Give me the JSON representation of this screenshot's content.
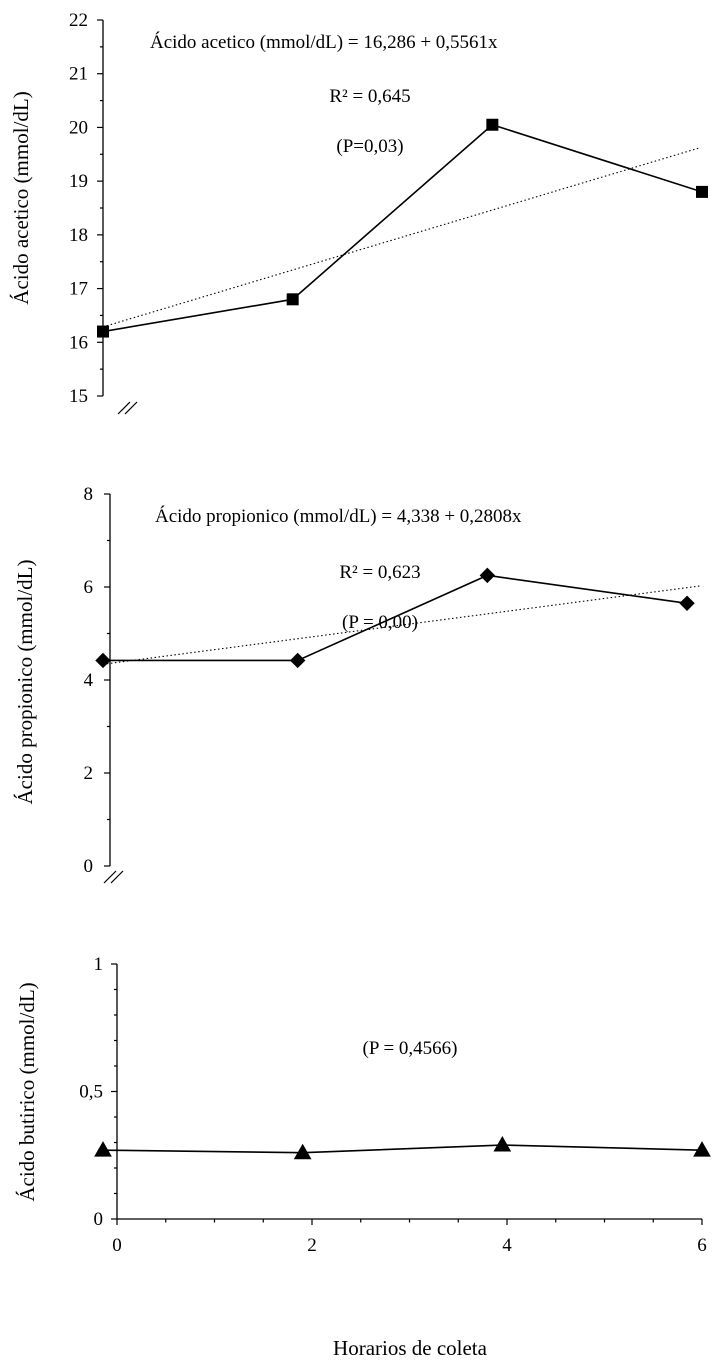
{
  "chart_data": [
    {
      "type": "line",
      "ylabel": "Ácido acetico (mmol/dL)",
      "xlabel": "",
      "ylim": [
        15,
        22
      ],
      "yticks": [
        "15",
        "16",
        "17",
        "18",
        "19",
        "20",
        "21",
        "22"
      ],
      "axis_break": true,
      "marker": "square",
      "series": [
        {
          "x": [
            0,
            1.9,
            3.9,
            6
          ],
          "values": [
            16.2,
            16.8,
            20.05,
            18.8
          ]
        }
      ],
      "trendline": {
        "style": "dotted",
        "intercept": 16.286,
        "slope": 0.5561,
        "x_start": 0,
        "x_end": 6
      },
      "annotations": [
        "Ácido acetico  (mmol/dL)   = 16,286 + 0,5561x",
        "R² = 0,645",
        "(P=0,03)"
      ]
    },
    {
      "type": "line",
      "ylabel": "Ácido propionico (mmol/dL)",
      "xlabel": "",
      "ylim": [
        0,
        8
      ],
      "yticks": [
        "0",
        "2",
        "4",
        "6",
        "8"
      ],
      "axis_break": true,
      "marker": "diamond",
      "series": [
        {
          "x": [
            0,
            1.95,
            3.85,
            5.85
          ],
          "values": [
            4.42,
            4.42,
            6.25,
            5.65
          ]
        }
      ],
      "trendline": {
        "style": "dotted",
        "intercept": 4.338,
        "slope": 0.2808,
        "x_start": 0,
        "x_end": 6
      },
      "annotations": [
        "Ácido propionico  (mmol/dL)  = 4,338 + 0,2808x",
        "R² = 0,623",
        "(P = 0,00)"
      ]
    },
    {
      "type": "line",
      "ylabel": "Ácido butirico (mmol/dL)",
      "xlabel": "Horarios de coleta",
      "xlim": [
        0,
        6
      ],
      "xticks": [
        "0",
        "2",
        "4",
        "6"
      ],
      "ylim": [
        0,
        1
      ],
      "yticks": [
        "0",
        "0,5",
        "1"
      ],
      "axis_break": false,
      "marker": "triangle",
      "series": [
        {
          "x": [
            0,
            2,
            4,
            6
          ],
          "values": [
            0.27,
            0.26,
            0.29,
            0.27
          ]
        }
      ],
      "annotations": [
        "(P = 0,4566)"
      ]
    }
  ]
}
